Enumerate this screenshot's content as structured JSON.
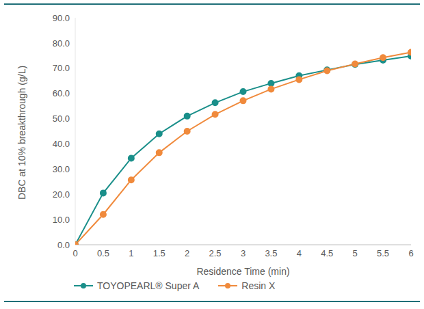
{
  "chart_data": {
    "type": "line",
    "x_label": "Residence Time (min)",
    "y_label": "DBC at 10% breakthrough (g/L)",
    "x": [
      0,
      0.5,
      1,
      1.5,
      2,
      2.5,
      3,
      3.5,
      4,
      4.5,
      5,
      5.5,
      6
    ],
    "series": [
      {
        "name": "TOYOPEARL® Super A",
        "color": "#1a8f8a",
        "marker": "circle",
        "line_style": "solid",
        "values": [
          0,
          20.5,
          34.3,
          44.0,
          51.0,
          56.3,
          60.7,
          64.0,
          67.0,
          69.3,
          71.5,
          73.2,
          74.8
        ]
      },
      {
        "name": "Resin X",
        "color": "#f08a3c",
        "marker": "circle",
        "line_style": "solid",
        "values": [
          0,
          12.0,
          25.7,
          36.5,
          45.0,
          51.7,
          57.1,
          61.7,
          65.5,
          69.0,
          71.7,
          74.2,
          76.3
        ]
      }
    ],
    "xlim": [
      0,
      6
    ],
    "xticks": [
      0,
      0.5,
      1,
      1.5,
      2,
      2.5,
      3,
      3.5,
      4,
      4.5,
      5,
      5.5,
      6
    ],
    "ylim": [
      0,
      90
    ],
    "yticks": [
      {
        "value": 0,
        "label": "0.0"
      },
      {
        "value": 10,
        "label": "10.0"
      },
      {
        "value": 20,
        "label": "20.0"
      },
      {
        "value": 30,
        "label": "30.0"
      },
      {
        "value": 40,
        "label": "40.0"
      },
      {
        "value": 50,
        "label": "50.0"
      },
      {
        "value": 60,
        "label": "60.0"
      },
      {
        "value": 70,
        "label": "70.0"
      },
      {
        "value": 80,
        "label": "80.0"
      },
      {
        "value": 90,
        "label": "90.0"
      }
    ],
    "grid": false,
    "legend": "bottom"
  }
}
